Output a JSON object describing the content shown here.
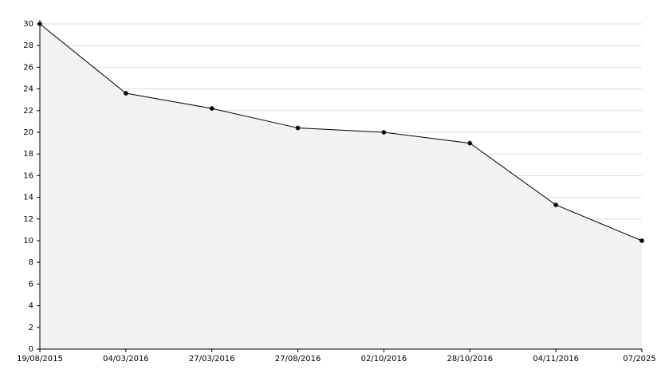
{
  "chart_data": {
    "type": "area",
    "categories": [
      "19/08/2015",
      "04/03/2016",
      "27/03/2016",
      "27/08/2016",
      "02/10/2016",
      "28/10/2016",
      "04/11/2016",
      "07/2025"
    ],
    "values": [
      30,
      23.6,
      22.2,
      20.4,
      20,
      19,
      13.3,
      10
    ],
    "color": "#000000",
    "fill": "#f2f2f2",
    "ylim": [
      0,
      30
    ],
    "yticks": [
      0,
      2,
      4,
      6,
      8,
      10,
      12,
      14,
      16,
      18,
      20,
      22,
      24,
      26,
      28,
      30
    ],
    "grid": true
  }
}
